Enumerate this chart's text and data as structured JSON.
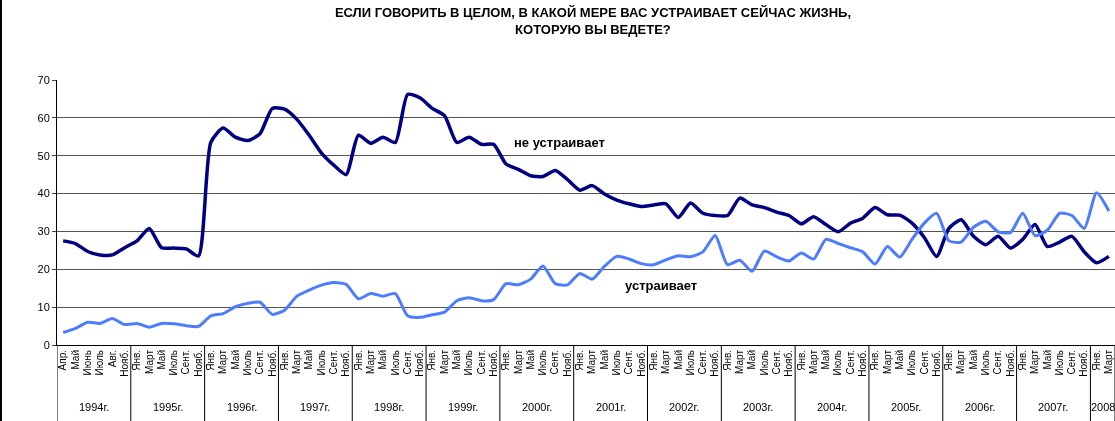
{
  "chart_data": {
    "type": "line",
    "title": "ЕСЛИ ГОВОРИТЬ В ЦЕЛОМ, В КАКОЙ МЕРЕ ВАС УСТРАИВАЕТ СЕЙЧАС ЖИЗНЬ,\nКОТОРУЮ ВЫ ВЕДЕТЕ?",
    "categories": [
      "Апр.",
      "Май",
      "Июнь",
      "Июль",
      "Авг.",
      "Нояб.",
      "Янв.",
      "Март",
      "Май",
      "Июль",
      "Сент.",
      "Нояб.",
      "Янв.",
      "Март",
      "Май",
      "Июль",
      "Сент.",
      "Нояб.",
      "Янв.",
      "Март",
      "Май",
      "Июль",
      "Сент.",
      "Нояб.",
      "Янв.",
      "Март",
      "Май",
      "Июль",
      "Сент.",
      "Нояб.",
      "Янв.",
      "Март",
      "Май",
      "Июль",
      "Сент.",
      "Нояб.",
      "Янв.",
      "Март",
      "Май",
      "Июль",
      "Сент.",
      "Нояб.",
      "Янв.",
      "Март",
      "Май",
      "Июль",
      "Сент.",
      "Нояб.",
      "Янв.",
      "Март",
      "Май",
      "Июль",
      "Сент.",
      "Нояб.",
      "Янв.",
      "Март",
      "Май",
      "Июль",
      "Сент.",
      "Нояб.",
      "Янв.",
      "Март",
      "Май",
      "Июль",
      "Сент.",
      "Нояб.",
      "Янв.",
      "Март",
      "Май",
      "Июль",
      "Сент.",
      "Нояб.",
      "Янв.",
      "Март",
      "Май",
      "Июль",
      "Сент.",
      "Нояб.",
      "Янв.",
      "Март",
      "Май",
      "Июль",
      "Сент.",
      "Нояб.",
      "Янв.",
      "Март"
    ],
    "series": [
      {
        "name": "не устраивает",
        "color": "#000080",
        "values": [
          27.5,
          26.8,
          24.7,
          23.8,
          23.8,
          25.7,
          27.5,
          30.8,
          25.7,
          25.6,
          25.4,
          23.5,
          53.5,
          57.3,
          54.9,
          54,
          55.8,
          62.5,
          62.3,
          59.6,
          55.4,
          50.7,
          47.5,
          45,
          55.4,
          53.3,
          54.9,
          53.5,
          66.2,
          65.3,
          62.5,
          60.6,
          53.5,
          54.9,
          53,
          53,
          47.8,
          46.4,
          44.7,
          44.5,
          46.1,
          43.7,
          40.9,
          42.1,
          39.9,
          38.3,
          37.3,
          36.6,
          37,
          37.3,
          33.7,
          37.5,
          34.8,
          34.2,
          34.2,
          38.8,
          37,
          36.3,
          35.1,
          34.2,
          32,
          33.9,
          31.8,
          29.9,
          32.2,
          33.5,
          36.3,
          34.4,
          34.3,
          32.2,
          28.4,
          23.4,
          30.8,
          33.1,
          28.7,
          26.5,
          28.7,
          25.6,
          27.9,
          31.8,
          26,
          27.2,
          28.7,
          24.6,
          21.7,
          23.4
        ]
      },
      {
        "name": "устраивает",
        "color": "#4d7cff",
        "values": [
          3.3,
          4.4,
          6,
          5.7,
          7,
          5.4,
          5.7,
          4.7,
          5.7,
          5.6,
          5.1,
          4.9,
          7.7,
          8.3,
          10.1,
          11,
          11.3,
          8.1,
          9.2,
          12.9,
          14.5,
          15.8,
          16.5,
          16,
          12.2,
          13.6,
          12.9,
          13.6,
          7.7,
          7.3,
          8,
          8.7,
          11.7,
          12.5,
          11.7,
          12,
          16.2,
          15.9,
          17.4,
          20.9,
          16.2,
          15.9,
          18.9,
          17.4,
          20.8,
          23.4,
          22.7,
          21.5,
          21.2,
          22.5,
          23.6,
          23.3,
          24.6,
          28.9,
          21.2,
          22.4,
          19.5,
          24.8,
          23.3,
          22.2,
          24.3,
          22.7,
          27.9,
          26.8,
          25.7,
          24.6,
          21.4,
          26,
          23.2,
          27.9,
          32.2,
          34.8,
          27.5,
          27.2,
          31.1,
          32.7,
          29.9,
          29.7,
          34.8,
          28.9,
          30.3,
          34.8,
          34.2,
          30.8,
          40.2,
          35.4
        ]
      }
    ],
    "ylim": [
      0,
      70
    ],
    "yticks": [
      0,
      10,
      20,
      30,
      40,
      50,
      60,
      70
    ],
    "grid": "y",
    "legend": false,
    "marker": "none",
    "line_style": "solid",
    "annotations": [
      "1994г.",
      "1995г.",
      "1996г.",
      "1997г.",
      "1998г.",
      "1999г.",
      "2000г.",
      "2001г.",
      "2002г.",
      "2003г.",
      "2004г.",
      "2005г.",
      "2006г.",
      "2007г.",
      "2008"
    ]
  }
}
